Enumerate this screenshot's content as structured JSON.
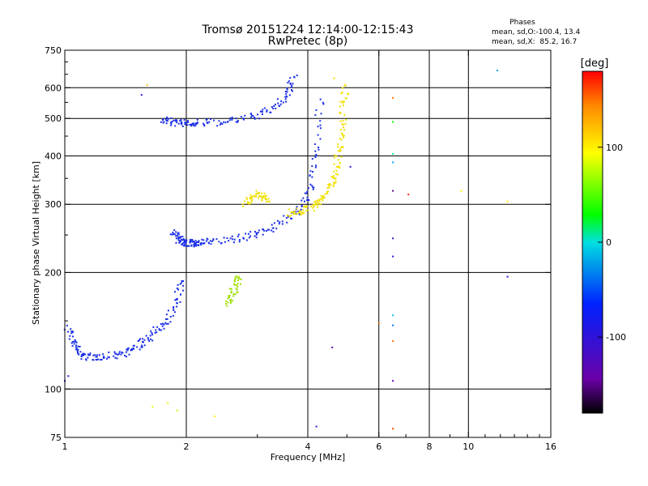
{
  "chart_data": {
    "type": "scatter",
    "title": "Tromsø 20151224 12:14:00-12:15:43",
    "subtitle": "RwPretec (8p)",
    "xlabel": "Frequency [MHz]",
    "ylabel": "Stationary phase Virtual Height [km]",
    "x_scale": "log",
    "y_scale": "log",
    "xlim": [
      1,
      16
    ],
    "ylim": [
      75,
      750
    ],
    "x_ticks": [
      1,
      2,
      4,
      6,
      8,
      10,
      16
    ],
    "x_tick_labels": [
      "1",
      "2",
      "4",
      "6",
      "8",
      "10",
      "16"
    ],
    "y_ticks": [
      75,
      100,
      200,
      300,
      400,
      500,
      600,
      750
    ],
    "y_tick_labels": [
      "75",
      "100",
      "200",
      "300",
      "400",
      "500",
      "600",
      "750"
    ],
    "y_gridlines": [
      100,
      200,
      300,
      400,
      500,
      600
    ],
    "x_gridlines": [
      2,
      4,
      6,
      8,
      10
    ],
    "grid": true,
    "stats": {
      "heading": "Phases",
      "line_o": "mean, sd,O:-100.4, 13.4",
      "line_x": "mean, sd,X:  85.2, 16.7"
    },
    "colorbar": {
      "label": "[deg]",
      "range": [
        -180,
        180
      ],
      "ticks": [
        100,
        0,
        -100
      ],
      "tick_labels": [
        "100",
        "0",
        "-100"
      ],
      "colormap": "rainbow (black-violet-blue-cyan-green-yellow-red)"
    },
    "traces": [
      {
        "name": "",
        "phase": -100,
        "color": "#1a2ee8",
        "x": [
          1.02,
          1.05,
          1.08,
          1.12,
          1.2,
          1.3,
          1.4,
          1.5,
          1.6,
          1.7,
          1.8,
          1.9,
          1.95
        ],
        "y": [
          145,
          132,
          124,
          121,
          121,
          122,
          124,
          128,
          134,
          142,
          153,
          170,
          190
        ]
      },
      {
        "name": "",
        "phase": -100,
        "color": "#1a2ee8",
        "x": [
          1.85,
          1.9,
          1.95,
          2.0,
          2.05,
          2.1,
          2.2,
          2.4,
          2.7,
          3.0,
          3.3,
          3.6,
          3.9,
          4.1,
          4.2,
          4.3
        ],
        "y": [
          255,
          245,
          240,
          238,
          238,
          238,
          239,
          241,
          245,
          252,
          262,
          278,
          300,
          340,
          420,
          560
        ]
      },
      {
        "name": "",
        "phase": -100,
        "color": "#1a2ee8",
        "x": [
          1.75,
          1.85,
          1.95,
          2.05,
          2.2,
          2.5,
          2.8,
          3.1,
          3.4,
          3.6,
          3.7
        ],
        "y": [
          495,
          490,
          486,
          485,
          486,
          490,
          500,
          515,
          545,
          590,
          640
        ]
      },
      {
        "name": "",
        "phase": 100,
        "color": "#f0e000",
        "x": [
          3.6,
          3.8,
          4.0,
          4.2,
          4.4,
          4.6,
          4.7,
          4.8,
          4.85,
          4.9,
          4.95
        ],
        "y": [
          285,
          287,
          292,
          300,
          315,
          340,
          370,
          410,
          460,
          530,
          610
        ]
      },
      {
        "name": "",
        "phase": 100,
        "color": "#f0e000",
        "x": [
          2.8,
          2.9,
          3.0,
          3.1,
          3.2
        ],
        "y": [
          300,
          310,
          320,
          315,
          305
        ]
      },
      {
        "name": "",
        "phase": 80,
        "color": "#9de000",
        "x": [
          2.55,
          2.6,
          2.65,
          2.7
        ],
        "y": [
          165,
          175,
          185,
          195
        ]
      }
    ],
    "isolated_points": [
      {
        "x": 6.5,
        "y": 565,
        "phase": 150
      },
      {
        "x": 6.5,
        "y": 490,
        "phase": 30
      },
      {
        "x": 6.5,
        "y": 405,
        "phase": 10
      },
      {
        "x": 6.5,
        "y": 385,
        "phase": -20
      },
      {
        "x": 6.5,
        "y": 325,
        "phase": -150
      },
      {
        "x": 6.5,
        "y": 245,
        "phase": -100
      },
      {
        "x": 6.5,
        "y": 220,
        "phase": -110
      },
      {
        "x": 6.5,
        "y": 155,
        "phase": -10
      },
      {
        "x": 6.5,
        "y": 146,
        "phase": -40
      },
      {
        "x": 6.5,
        "y": 133,
        "phase": 150
      },
      {
        "x": 6.5,
        "y": 105,
        "phase": -140
      },
      {
        "x": 6.5,
        "y": 79,
        "phase": 160
      },
      {
        "x": 7.1,
        "y": 318,
        "phase": 170
      },
      {
        "x": 9.6,
        "y": 325,
        "phase": 100
      },
      {
        "x": 12.5,
        "y": 305,
        "phase": 100
      },
      {
        "x": 12.5,
        "y": 195,
        "phase": -90
      },
      {
        "x": 11.8,
        "y": 665,
        "phase": -20
      },
      {
        "x": 5.1,
        "y": 375,
        "phase": -90
      },
      {
        "x": 4.6,
        "y": 128,
        "phase": -140
      },
      {
        "x": 4.2,
        "y": 80,
        "phase": -110
      },
      {
        "x": 6.0,
        "y": 148,
        "phase": 150
      },
      {
        "x": 1.6,
        "y": 610,
        "phase": 120
      },
      {
        "x": 1.55,
        "y": 575,
        "phase": -90
      },
      {
        "x": 1.8,
        "y": 92,
        "phase": 100
      },
      {
        "x": 1.9,
        "y": 88,
        "phase": 80
      },
      {
        "x": 2.35,
        "y": 85,
        "phase": 100
      },
      {
        "x": 1.65,
        "y": 90,
        "phase": 90
      },
      {
        "x": 1.0,
        "y": 105,
        "phase": -100
      },
      {
        "x": 1.02,
        "y": 108,
        "phase": -100
      },
      {
        "x": 4.65,
        "y": 635,
        "phase": 110
      }
    ]
  }
}
